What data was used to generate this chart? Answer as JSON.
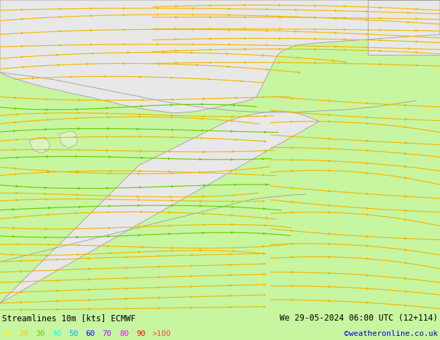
{
  "title_left": "Streamlines 10m [kts] ECMWF",
  "title_right": "We 29-05-2024 06:00 UTC (12+114)",
  "credit": "©weatheronline.co.uk",
  "background_color": "#c8f5a0",
  "land_color": "#e8e8e8",
  "land_green_color": "#d8f5c0",
  "border_color": "#888888",
  "legend_values": [
    "10",
    "20",
    "30",
    "40",
    "50",
    "60",
    "70",
    "80",
    "90",
    ">100"
  ],
  "legend_colors": [
    "#ffff00",
    "#ffcc00",
    "#66cc00",
    "#00ffff",
    "#00aaff",
    "#0000ff",
    "#aa00ff",
    "#ff00ff",
    "#ff0000",
    "#ff4444"
  ],
  "yellow_color": "#f0b800",
  "green_color": "#66cc00",
  "border_line_color": "#999999",
  "text_color": "#000000",
  "figsize": [
    6.34,
    4.9
  ],
  "dpi": 100
}
